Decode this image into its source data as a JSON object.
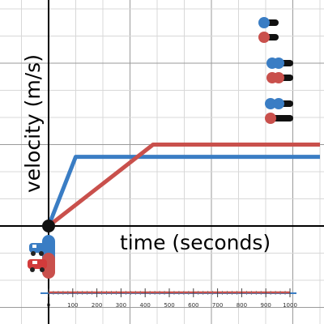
{
  "chart_data": {
    "type": "line",
    "title": "",
    "xlabel": "time (seconds)",
    "ylabel": "velocity (m/s)",
    "grid": true,
    "timeline": {
      "ticks": [
        0,
        100,
        200,
        300,
        400,
        500,
        600,
        700,
        800,
        900,
        1000
      ],
      "range": [
        0,
        1000
      ]
    },
    "series": [
      {
        "color": "#3a7dc4",
        "points": [
          [
            0,
            0
          ],
          [
            1,
            2.55
          ],
          [
            10,
            2.55
          ]
        ]
      },
      {
        "color": "#c9504c",
        "points": [
          [
            0,
            0
          ],
          [
            3.85,
            3.0
          ],
          [
            10,
            3.0
          ]
        ]
      }
    ],
    "colors": {
      "blue": "#3a7dc4",
      "red": "#c9504c",
      "axis": "#000000",
      "grid": "#d8d8d8"
    },
    "icons": {
      "car": "car-icon",
      "blue_car": "blue-car-icon"
    }
  }
}
